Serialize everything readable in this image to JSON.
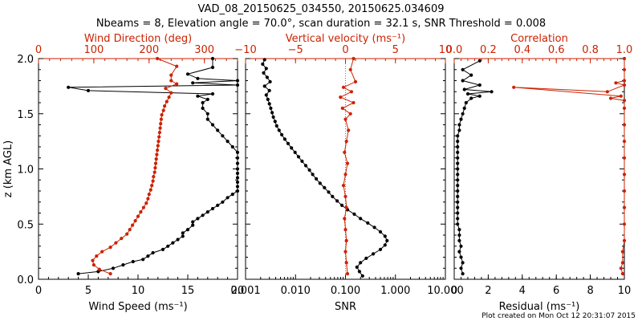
{
  "title": {
    "line1": "VAD_08_20150625_034550, 20150625.034609",
    "line2": "Nbeams = 8, Elevation angle = 70.0°, scan duration = 32.1 s, SNR Threshold = 0.008"
  },
  "footer": "Plot created on Mon Oct 12 20:31:07 2015",
  "colors": {
    "black": "#000000",
    "red": "#cc2200",
    "background": "#ffffff"
  },
  "chart_data": [
    {
      "type": "line",
      "panel": "wind",
      "ylabel": "z (km AGL)",
      "ylim": [
        0,
        2.0
      ],
      "yticks": [
        "0.0",
        "0.5",
        "1.0",
        "1.5",
        "2.0"
      ],
      "bottom_axis": {
        "label": "Wind Speed (ms⁻¹)",
        "range": [
          0,
          20
        ],
        "ticks": [
          "0",
          "5",
          "10",
          "15",
          "20"
        ]
      },
      "top_axis": {
        "label": "Wind Direction (deg)",
        "range": [
          0,
          360
        ],
        "ticks": [
          "0",
          "100",
          "200",
          "300"
        ]
      },
      "series": [
        {
          "name": "Wind Speed",
          "axis": "bottom",
          "color": "#000000",
          "points": [
            [
              4.0,
              0.05
            ],
            [
              6.0,
              0.07
            ],
            [
              7.5,
              0.1
            ],
            [
              8.5,
              0.13
            ],
            [
              9.5,
              0.16
            ],
            [
              10.5,
              0.18
            ],
            [
              11.0,
              0.21
            ],
            [
              11.5,
              0.24
            ],
            [
              12.5,
              0.27
            ],
            [
              13.0,
              0.3
            ],
            [
              13.5,
              0.33
            ],
            [
              14.0,
              0.36
            ],
            [
              14.5,
              0.39
            ],
            [
              14.5,
              0.42
            ],
            [
              15.0,
              0.45
            ],
            [
              15.5,
              0.49
            ],
            [
              15.5,
              0.52
            ],
            [
              16.0,
              0.55
            ],
            [
              16.5,
              0.58
            ],
            [
              17.0,
              0.61
            ],
            [
              17.5,
              0.64
            ],
            [
              18.0,
              0.67
            ],
            [
              18.5,
              0.7
            ],
            [
              19.0,
              0.74
            ],
            [
              19.5,
              0.77
            ],
            [
              20.0,
              0.8
            ],
            [
              20.0,
              0.84
            ],
            [
              20.0,
              0.88
            ],
            [
              20.0,
              0.92
            ],
            [
              20.0,
              0.96
            ],
            [
              20.0,
              1.0
            ],
            [
              20.0,
              1.05
            ],
            [
              20.0,
              1.1
            ],
            [
              20.0,
              1.15
            ],
            [
              19.5,
              1.2
            ],
            [
              19.0,
              1.25
            ],
            [
              18.5,
              1.3
            ],
            [
              18.0,
              1.35
            ],
            [
              17.5,
              1.4
            ],
            [
              17.0,
              1.45
            ],
            [
              17.0,
              1.5
            ],
            [
              16.5,
              1.55
            ],
            [
              16.5,
              1.6
            ],
            [
              17.0,
              1.63
            ],
            [
              16.0,
              1.66
            ],
            [
              17.5,
              1.68
            ],
            [
              5.0,
              1.71
            ],
            [
              3.0,
              1.74
            ],
            [
              20.0,
              1.76
            ],
            [
              15.5,
              1.78
            ],
            [
              20.0,
              1.8
            ],
            [
              16.0,
              1.82
            ],
            [
              15.0,
              1.86
            ],
            [
              17.5,
              1.92
            ],
            [
              17.5,
              2.0
            ]
          ]
        },
        {
          "name": "Wind Direction",
          "axis": "top",
          "color": "#cc2200",
          "points": [
            [
              130,
              0.05
            ],
            [
              110,
              0.09
            ],
            [
              100,
              0.13
            ],
            [
              98,
              0.17
            ],
            [
              105,
              0.21
            ],
            [
              115,
              0.25
            ],
            [
              130,
              0.29
            ],
            [
              140,
              0.33
            ],
            [
              150,
              0.37
            ],
            [
              160,
              0.41
            ],
            [
              165,
              0.45
            ],
            [
              170,
              0.49
            ],
            [
              175,
              0.53
            ],
            [
              180,
              0.57
            ],
            [
              185,
              0.61
            ],
            [
              190,
              0.65
            ],
            [
              195,
              0.69
            ],
            [
              198,
              0.73
            ],
            [
              200,
              0.77
            ],
            [
              203,
              0.81
            ],
            [
              205,
              0.85
            ],
            [
              207,
              0.89
            ],
            [
              208,
              0.93
            ],
            [
              210,
              0.97
            ],
            [
              211,
              1.01
            ],
            [
              212,
              1.05
            ],
            [
              213,
              1.09
            ],
            [
              214,
              1.13
            ],
            [
              215,
              1.17
            ],
            [
              216,
              1.21
            ],
            [
              217,
              1.25
            ],
            [
              218,
              1.29
            ],
            [
              219,
              1.33
            ],
            [
              220,
              1.37
            ],
            [
              221,
              1.41
            ],
            [
              222,
              1.45
            ],
            [
              223,
              1.49
            ],
            [
              226,
              1.53
            ],
            [
              228,
              1.57
            ],
            [
              232,
              1.61
            ],
            [
              236,
              1.65
            ],
            [
              240,
              1.69
            ],
            [
              230,
              1.73
            ],
            [
              250,
              1.77
            ],
            [
              240,
              1.8
            ],
            [
              240,
              1.85
            ],
            [
              250,
              1.93
            ],
            [
              215,
              2.0
            ]
          ]
        }
      ]
    },
    {
      "type": "line",
      "panel": "snr",
      "ylim": [
        0,
        2.0
      ],
      "bottom_axis": {
        "label": "SNR",
        "range": [
          0.001,
          10
        ],
        "scale": "log",
        "ticks": [
          "0.001",
          "0.010",
          "0.100",
          "1.000",
          "10.000"
        ]
      },
      "top_axis": {
        "label": "Vertical velocity (ms⁻¹)",
        "range": [
          -10,
          10
        ],
        "ticks": [
          "−10",
          "−5",
          "0",
          "5",
          "10"
        ]
      },
      "series": [
        {
          "name": "SNR",
          "axis": "bottom",
          "color": "#000000",
          "points": [
            [
              0.22,
              0.03
            ],
            [
              0.19,
              0.07
            ],
            [
              0.17,
              0.11
            ],
            [
              0.2,
              0.15
            ],
            [
              0.26,
              0.19
            ],
            [
              0.36,
              0.23
            ],
            [
              0.5,
              0.27
            ],
            [
              0.62,
              0.31
            ],
            [
              0.68,
              0.35
            ],
            [
              0.62,
              0.39
            ],
            [
              0.5,
              0.43
            ],
            [
              0.38,
              0.47
            ],
            [
              0.28,
              0.51
            ],
            [
              0.2,
              0.55
            ],
            [
              0.15,
              0.59
            ],
            [
              0.11,
              0.63
            ],
            [
              0.085,
              0.67
            ],
            [
              0.068,
              0.71
            ],
            [
              0.055,
              0.75
            ],
            [
              0.046,
              0.79
            ],
            [
              0.038,
              0.83
            ],
            [
              0.031,
              0.87
            ],
            [
              0.026,
              0.91
            ],
            [
              0.022,
              0.95
            ],
            [
              0.019,
              0.99
            ],
            [
              0.016,
              1.03
            ],
            [
              0.0135,
              1.07
            ],
            [
              0.0115,
              1.11
            ],
            [
              0.0098,
              1.15
            ],
            [
              0.0083,
              1.19
            ],
            [
              0.0071,
              1.23
            ],
            [
              0.0061,
              1.27
            ],
            [
              0.0053,
              1.31
            ],
            [
              0.0047,
              1.35
            ],
            [
              0.0042,
              1.39
            ],
            [
              0.0039,
              1.43
            ],
            [
              0.0036,
              1.47
            ],
            [
              0.0034,
              1.51
            ],
            [
              0.0032,
              1.55
            ],
            [
              0.003,
              1.59
            ],
            [
              0.0028,
              1.63
            ],
            [
              0.0026,
              1.67
            ],
            [
              0.003,
              1.71
            ],
            [
              0.0024,
              1.75
            ],
            [
              0.0031,
              1.79
            ],
            [
              0.0027,
              1.83
            ],
            [
              0.0023,
              1.87
            ],
            [
              0.0026,
              1.91
            ],
            [
              0.0022,
              1.95
            ],
            [
              0.0024,
              1.99
            ]
          ]
        },
        {
          "name": "Vertical velocity",
          "axis": "top",
          "color": "#cc2200",
          "points": [
            [
              0.2,
              0.05
            ],
            [
              0.1,
              0.15
            ],
            [
              0.0,
              0.25
            ],
            [
              0.1,
              0.35
            ],
            [
              0.0,
              0.45
            ],
            [
              -0.1,
              0.55
            ],
            [
              0.1,
              0.65
            ],
            [
              0.0,
              0.75
            ],
            [
              -0.2,
              0.85
            ],
            [
              0.0,
              0.95
            ],
            [
              0.2,
              1.05
            ],
            [
              -0.1,
              1.15
            ],
            [
              0.1,
              1.25
            ],
            [
              0.3,
              1.35
            ],
            [
              0.0,
              1.45
            ],
            [
              0.5,
              1.5
            ],
            [
              -0.3,
              1.55
            ],
            [
              0.8,
              1.6
            ],
            [
              -0.5,
              1.65
            ],
            [
              0.6,
              1.7
            ],
            [
              -0.2,
              1.74
            ],
            [
              1.0,
              1.79
            ],
            [
              0.5,
              1.9
            ],
            [
              0.8,
              2.0
            ]
          ]
        }
      ]
    },
    {
      "type": "line",
      "panel": "corr",
      "ylim": [
        0,
        2.0
      ],
      "bottom_axis": {
        "label": "Residual (ms⁻¹)",
        "range": [
          0,
          10
        ],
        "ticks": [
          "0",
          "2",
          "4",
          "6",
          "8",
          "10"
        ]
      },
      "top_axis": {
        "label": "Correlation",
        "range": [
          0,
          1.0
        ],
        "ticks": [
          "0.0",
          "0.2",
          "0.4",
          "0.6",
          "0.8",
          "1.0"
        ]
      },
      "series": [
        {
          "name": "Residual",
          "axis": "bottom",
          "color": "#000000",
          "points": [
            [
              0.5,
              0.05
            ],
            [
              0.4,
              0.1
            ],
            [
              0.5,
              0.15
            ],
            [
              0.4,
              0.2
            ],
            [
              0.3,
              0.25
            ],
            [
              0.4,
              0.3
            ],
            [
              0.3,
              0.35
            ],
            [
              0.3,
              0.4
            ],
            [
              0.3,
              0.45
            ],
            [
              0.2,
              0.5
            ],
            [
              0.2,
              0.55
            ],
            [
              0.2,
              0.6
            ],
            [
              0.2,
              0.65
            ],
            [
              0.2,
              0.7
            ],
            [
              0.2,
              0.75
            ],
            [
              0.2,
              0.8
            ],
            [
              0.2,
              0.85
            ],
            [
              0.2,
              0.9
            ],
            [
              0.2,
              0.95
            ],
            [
              0.2,
              1.0
            ],
            [
              0.2,
              1.05
            ],
            [
              0.2,
              1.1
            ],
            [
              0.2,
              1.15
            ],
            [
              0.2,
              1.2
            ],
            [
              0.2,
              1.25
            ],
            [
              0.2,
              1.3
            ],
            [
              0.3,
              1.35
            ],
            [
              0.3,
              1.4
            ],
            [
              0.4,
              1.45
            ],
            [
              0.5,
              1.5
            ],
            [
              0.6,
              1.55
            ],
            [
              0.7,
              1.6
            ],
            [
              1.0,
              1.64
            ],
            [
              1.5,
              1.66
            ],
            [
              0.8,
              1.68
            ],
            [
              2.2,
              1.7
            ],
            [
              0.6,
              1.72
            ],
            [
              1.5,
              1.76
            ],
            [
              0.5,
              1.8
            ],
            [
              1.0,
              1.85
            ],
            [
              0.5,
              1.9
            ],
            [
              1.5,
              1.98
            ]
          ]
        },
        {
          "name": "Correlation",
          "axis": "top",
          "color": "#cc2200",
          "points": [
            [
              0.99,
              0.05
            ],
            [
              0.98,
              0.1
            ],
            [
              0.99,
              0.15
            ],
            [
              0.99,
              0.25
            ],
            [
              1.0,
              0.35
            ],
            [
              1.0,
              0.5
            ],
            [
              1.0,
              0.65
            ],
            [
              1.0,
              0.8
            ],
            [
              1.0,
              0.95
            ],
            [
              1.0,
              1.1
            ],
            [
              1.0,
              1.25
            ],
            [
              1.0,
              1.4
            ],
            [
              1.0,
              1.55
            ],
            [
              1.0,
              1.62
            ],
            [
              0.92,
              1.64
            ],
            [
              0.98,
              1.66
            ],
            [
              0.35,
              1.74
            ],
            [
              0.9,
              1.7
            ],
            [
              1.0,
              1.76
            ],
            [
              0.95,
              1.78
            ],
            [
              1.0,
              1.8
            ],
            [
              1.0,
              1.9
            ],
            [
              1.0,
              2.0
            ]
          ]
        }
      ]
    }
  ]
}
